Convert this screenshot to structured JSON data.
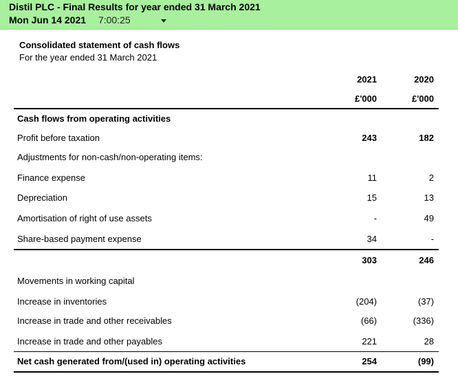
{
  "header": {
    "title": "Distil PLC - Final Results for year ended 31 March 2021",
    "date": "Mon Jun 14 2021",
    "time": "7:00:25",
    "accent_color": "#a8f09e"
  },
  "statement": {
    "title": "Consolidated statement of cash flows",
    "subtitle": "For the year ended 31 March 2021",
    "columns": [
      {
        "year": "2021",
        "unit": "£'000"
      },
      {
        "year": "2020",
        "unit": "£'000"
      }
    ],
    "rows": [
      {
        "label": "Cash flows from operating activities",
        "v2021": "",
        "v2020": ""
      },
      {
        "label": "Profit before taxation",
        "v2021": "243",
        "v2020": "182"
      },
      {
        "label": "Adjustments for non-cash/non-operating items:",
        "v2021": "",
        "v2020": ""
      },
      {
        "label": "Finance expense",
        "v2021": "11",
        "v2020": "2"
      },
      {
        "label": "Depreciation",
        "v2021": "15",
        "v2020": "13"
      },
      {
        "label": "Amortisation of right of use assets",
        "v2021": "-",
        "v2020": "49"
      },
      {
        "label": "Share-based payment expense",
        "v2021": "34",
        "v2020": "-"
      },
      {
        "label": "",
        "v2021": "303",
        "v2020": "246"
      },
      {
        "label": "Movements in working capital",
        "v2021": "",
        "v2020": ""
      },
      {
        "label": "Increase in inventories",
        "v2021": "(204)",
        "v2020": "(37)"
      },
      {
        "label": "Increase in trade and other receivables",
        "v2021": "(66)",
        "v2020": "(336)"
      },
      {
        "label": "Increase in trade and other payables",
        "v2021": "221",
        "v2020": "28"
      },
      {
        "label": "Net cash generated from/(used in) operating activities",
        "v2021": "254",
        "v2020": "(99)"
      }
    ]
  }
}
